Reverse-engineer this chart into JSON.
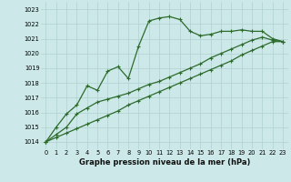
{
  "xlabel": "Graphe pression niveau de la mer (hPa)",
  "bg_color": "#cce8e8",
  "grid_color": "#b0d0d0",
  "line_color": "#2d6b2d",
  "marker": "+",
  "x": [
    0,
    1,
    2,
    3,
    4,
    5,
    6,
    7,
    8,
    9,
    10,
    11,
    12,
    13,
    14,
    15,
    16,
    17,
    18,
    19,
    20,
    21,
    22,
    23
  ],
  "line1": [
    1014.0,
    1015.0,
    1015.9,
    1016.5,
    1017.8,
    1017.5,
    1018.8,
    1019.1,
    1018.3,
    1020.5,
    1022.2,
    1022.4,
    1022.5,
    1022.3,
    1021.5,
    1021.2,
    1021.3,
    1021.5,
    1021.5,
    1021.6,
    1021.5,
    1021.5,
    1021.0,
    1020.8
  ],
  "line2": [
    1014.0,
    1014.3,
    1014.6,
    1014.9,
    1015.2,
    1015.5,
    1015.8,
    1016.1,
    1016.5,
    1016.8,
    1017.1,
    1017.4,
    1017.7,
    1018.0,
    1018.3,
    1018.6,
    1018.9,
    1019.2,
    1019.5,
    1019.9,
    1020.2,
    1020.5,
    1020.8,
    1020.8
  ],
  "line3": [
    1014.0,
    1014.5,
    1015.0,
    1015.9,
    1016.3,
    1016.7,
    1016.9,
    1017.1,
    1017.3,
    1017.6,
    1017.9,
    1018.1,
    1018.4,
    1018.7,
    1019.0,
    1019.3,
    1019.7,
    1020.0,
    1020.3,
    1020.6,
    1020.9,
    1021.1,
    1020.9,
    1020.8
  ],
  "ylim": [
    1013.5,
    1023.5
  ],
  "xlim": [
    -0.5,
    23.5
  ],
  "yticks": [
    1014,
    1015,
    1016,
    1017,
    1018,
    1019,
    1020,
    1021,
    1022,
    1023
  ],
  "xticks": [
    0,
    1,
    2,
    3,
    4,
    5,
    6,
    7,
    8,
    9,
    10,
    11,
    12,
    13,
    14,
    15,
    16,
    17,
    18,
    19,
    20,
    21,
    22,
    23
  ],
  "tick_fontsize": 4.8,
  "xlabel_fontsize": 6.0,
  "figwidth": 3.2,
  "figheight": 2.0,
  "dpi": 100
}
